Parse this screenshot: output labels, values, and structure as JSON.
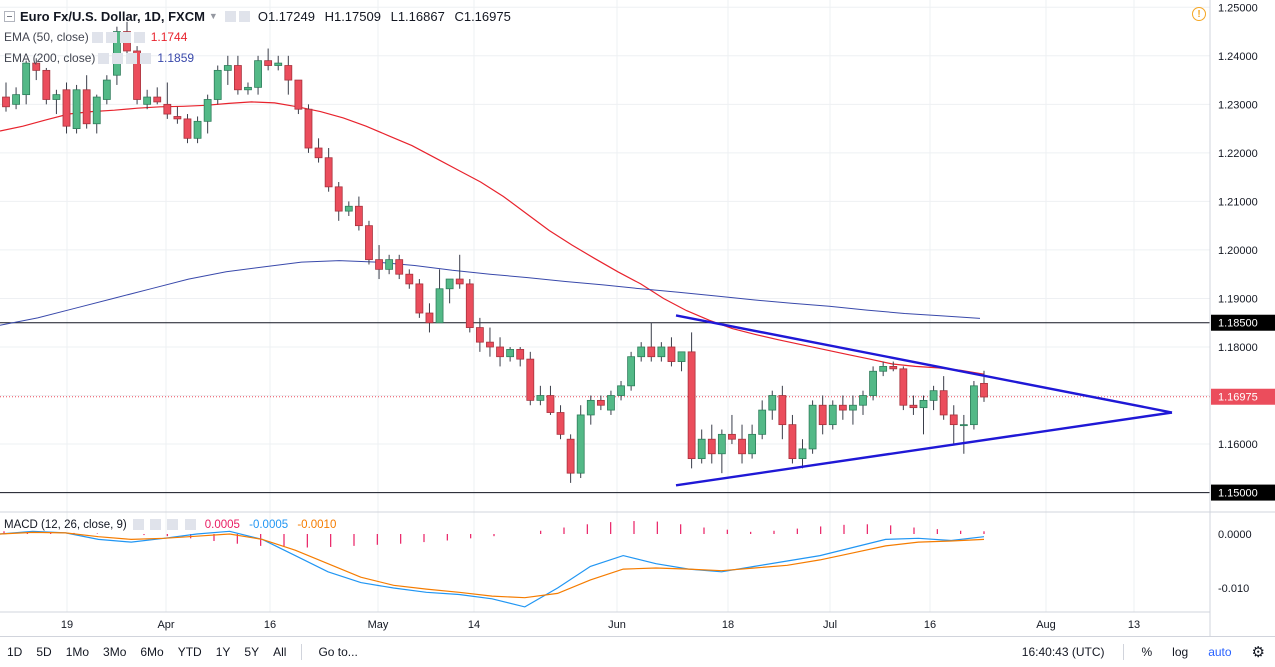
{
  "header": {
    "symbol": "Euro Fx/U.S. Dollar, 1D, FXCM",
    "open": "O1.17249",
    "high": "H1.17509",
    "low": "L1.16867",
    "close": "C1.16975",
    "alert_icon": "clock-alert-icon"
  },
  "indicators": [
    {
      "label": "EMA (50, close)",
      "value": "1.1744",
      "color": "#e8232d"
    },
    {
      "label": "EMA (200, close)",
      "value": "1.1859",
      "color": "#3949ab"
    }
  ],
  "macd": {
    "label": "MACD (12, 26, close, 9)",
    "hist": "0.0005",
    "macd": "-0.0005",
    "signal": "-0.0010",
    "hist_color": "#e91e63",
    "macd_color": "#2196f3",
    "signal_color": "#f57c00"
  },
  "price_axis": {
    "ticks": [
      "1.25000",
      "1.24000",
      "1.23000",
      "1.22000",
      "1.21000",
      "1.20000",
      "1.19000",
      "1.18000",
      "1.16000",
      "1.15000"
    ],
    "labels": {
      "resistance": "1.18500",
      "current": "1.16975",
      "support": "1.15000"
    },
    "macd_ticks": [
      "0.0000",
      "-0.010"
    ]
  },
  "time_axis": [
    "19",
    "Apr",
    "16",
    "May",
    "14",
    "Jun",
    "18",
    "Jul",
    "16",
    "Aug",
    "13"
  ],
  "bottom_bar": {
    "timeframes": [
      "1D",
      "5D",
      "1Mo",
      "3Mo",
      "6Mo",
      "YTD",
      "1Y",
      "5Y",
      "All"
    ],
    "goto": "Go to...",
    "clock": "16:40:43 (UTC)",
    "percent": "%",
    "log": "log",
    "auto": "auto",
    "settings_icon": "gear-icon"
  },
  "chart_data": {
    "type": "candlestick",
    "title": "Euro Fx/U.S. Dollar, 1D, FXCM",
    "ylim": [
      1.146,
      1.2515
    ],
    "x_labels": [
      "19",
      "Apr",
      "16",
      "May",
      "14",
      "Jun",
      "18",
      "Jul",
      "16",
      "Aug",
      "13"
    ],
    "candles": [
      [
        1.2315,
        1.2345,
        1.2285,
        1.2295
      ],
      [
        1.23,
        1.2335,
        1.229,
        1.232
      ],
      [
        1.232,
        1.239,
        1.23,
        1.2385
      ],
      [
        1.2385,
        1.2395,
        1.235,
        1.237
      ],
      [
        1.237,
        1.2375,
        1.23,
        1.231
      ],
      [
        1.231,
        1.233,
        1.228,
        1.232
      ],
      [
        1.233,
        1.2345,
        1.224,
        1.2255
      ],
      [
        1.225,
        1.234,
        1.224,
        1.233
      ],
      [
        1.233,
        1.236,
        1.225,
        1.226
      ],
      [
        1.226,
        1.232,
        1.224,
        1.2315
      ],
      [
        1.231,
        1.236,
        1.23,
        1.235
      ],
      [
        1.236,
        1.246,
        1.234,
        1.245
      ],
      [
        1.245,
        1.247,
        1.24,
        1.241
      ],
      [
        1.241,
        1.242,
        1.23,
        1.231
      ],
      [
        1.23,
        1.233,
        1.229,
        1.2315
      ],
      [
        1.2315,
        1.2335,
        1.23,
        1.2305
      ],
      [
        1.23,
        1.2345,
        1.227,
        1.228
      ],
      [
        1.2275,
        1.2295,
        1.226,
        1.227
      ],
      [
        1.227,
        1.228,
        1.222,
        1.223
      ],
      [
        1.223,
        1.2275,
        1.222,
        1.2265
      ],
      [
        1.2265,
        1.232,
        1.224,
        1.231
      ],
      [
        1.231,
        1.238,
        1.23,
        1.237
      ],
      [
        1.237,
        1.24,
        1.234,
        1.238
      ],
      [
        1.238,
        1.24,
        1.232,
        1.233
      ],
      [
        1.233,
        1.2345,
        1.232,
        1.2335
      ],
      [
        1.2335,
        1.24,
        1.232,
        1.239
      ],
      [
        1.239,
        1.2415,
        1.237,
        1.238
      ],
      [
        1.238,
        1.24,
        1.237,
        1.2385
      ],
      [
        1.238,
        1.24,
        1.232,
        1.235
      ],
      [
        1.235,
        1.235,
        1.228,
        1.229
      ],
      [
        1.229,
        1.23,
        1.22,
        1.221
      ],
      [
        1.221,
        1.223,
        1.218,
        1.219
      ],
      [
        1.219,
        1.221,
        1.212,
        1.213
      ],
      [
        1.213,
        1.214,
        1.206,
        1.208
      ],
      [
        1.208,
        1.21,
        1.207,
        1.209
      ],
      [
        1.209,
        1.211,
        1.204,
        1.205
      ],
      [
        1.205,
        1.206,
        1.197,
        1.198
      ],
      [
        1.198,
        1.201,
        1.194,
        1.196
      ],
      [
        1.196,
        1.199,
        1.195,
        1.198
      ],
      [
        1.198,
        1.199,
        1.194,
        1.195
      ],
      [
        1.195,
        1.196,
        1.192,
        1.193
      ],
      [
        1.193,
        1.194,
        1.186,
        1.187
      ],
      [
        1.187,
        1.189,
        1.183,
        1.185
      ],
      [
        1.185,
        1.196,
        1.185,
        1.192
      ],
      [
        1.192,
        1.194,
        1.189,
        1.194
      ],
      [
        1.194,
        1.199,
        1.192,
        1.193
      ],
      [
        1.193,
        1.194,
        1.183,
        1.184
      ],
      [
        1.184,
        1.186,
        1.179,
        1.181
      ],
      [
        1.181,
        1.184,
        1.178,
        1.18
      ],
      [
        1.18,
        1.182,
        1.176,
        1.178
      ],
      [
        1.178,
        1.18,
        1.177,
        1.1795
      ],
      [
        1.1795,
        1.18,
        1.176,
        1.1775
      ],
      [
        1.1775,
        1.179,
        1.168,
        1.169
      ],
      [
        1.169,
        1.172,
        1.168,
        1.17
      ],
      [
        1.17,
        1.172,
        1.166,
        1.1665
      ],
      [
        1.1665,
        1.168,
        1.161,
        1.162
      ],
      [
        1.161,
        1.162,
        1.152,
        1.154
      ],
      [
        1.154,
        1.168,
        1.153,
        1.166
      ],
      [
        1.166,
        1.17,
        1.164,
        1.169
      ],
      [
        1.169,
        1.17,
        1.167,
        1.168
      ],
      [
        1.167,
        1.171,
        1.166,
        1.17
      ],
      [
        1.17,
        1.173,
        1.169,
        1.172
      ],
      [
        1.172,
        1.179,
        1.171,
        1.178
      ],
      [
        1.178,
        1.181,
        1.177,
        1.18
      ],
      [
        1.18,
        1.185,
        1.177,
        1.178
      ],
      [
        1.178,
        1.181,
        1.177,
        1.18
      ],
      [
        1.18,
        1.182,
        1.176,
        1.177
      ],
      [
        1.177,
        1.179,
        1.175,
        1.179
      ],
      [
        1.179,
        1.183,
        1.155,
        1.157
      ],
      [
        1.157,
        1.163,
        1.156,
        1.161
      ],
      [
        1.161,
        1.164,
        1.156,
        1.158
      ],
      [
        1.158,
        1.163,
        1.154,
        1.162
      ],
      [
        1.162,
        1.166,
        1.16,
        1.161
      ],
      [
        1.161,
        1.164,
        1.156,
        1.158
      ],
      [
        1.158,
        1.164,
        1.157,
        1.162
      ],
      [
        1.162,
        1.169,
        1.161,
        1.167
      ],
      [
        1.167,
        1.171,
        1.165,
        1.17
      ],
      [
        1.17,
        1.172,
        1.161,
        1.164
      ],
      [
        1.164,
        1.166,
        1.156,
        1.157
      ],
      [
        1.157,
        1.161,
        1.155,
        1.159
      ],
      [
        1.159,
        1.169,
        1.158,
        1.168
      ],
      [
        1.168,
        1.17,
        1.162,
        1.164
      ],
      [
        1.164,
        1.169,
        1.163,
        1.168
      ],
      [
        1.168,
        1.17,
        1.165,
        1.167
      ],
      [
        1.167,
        1.17,
        1.164,
        1.168
      ],
      [
        1.168,
        1.171,
        1.166,
        1.17
      ],
      [
        1.17,
        1.176,
        1.169,
        1.175
      ],
      [
        1.175,
        1.177,
        1.174,
        1.176
      ],
      [
        1.176,
        1.177,
        1.175,
        1.1755
      ],
      [
        1.1755,
        1.176,
        1.167,
        1.168
      ],
      [
        1.168,
        1.17,
        1.166,
        1.1675
      ],
      [
        1.1675,
        1.17,
        1.162,
        1.169
      ],
      [
        1.169,
        1.172,
        1.167,
        1.171
      ],
      [
        1.171,
        1.174,
        1.165,
        1.166
      ],
      [
        1.166,
        1.168,
        1.16,
        1.164
      ],
      [
        1.164,
        1.166,
        1.158,
        1.164
      ],
      [
        1.164,
        1.173,
        1.163,
        1.172
      ],
      [
        1.1725,
        1.1751,
        1.1687,
        1.1697
      ]
    ],
    "ema50": [
      1.2245,
      1.2255,
      1.2268,
      1.228,
      1.2285,
      1.2288,
      1.2292,
      1.2295,
      1.2296,
      1.2298,
      1.2302,
      1.2305,
      1.2303,
      1.2295,
      1.2285,
      1.2272,
      1.2255,
      1.2235,
      1.2215,
      1.219,
      1.2165,
      1.214,
      1.211,
      1.2075,
      1.204,
      1.201,
      1.1982,
      1.1955,
      1.193,
      1.19,
      1.1875,
      1.1855,
      1.1838,
      1.1826,
      1.1815,
      1.1805,
      1.1795,
      1.1785,
      1.1775,
      1.1765,
      1.176,
      1.1757,
      1.1752,
      1.1744
    ],
    "ema200": [
      1.1845,
      1.186,
      1.188,
      1.19,
      1.192,
      1.194,
      1.1955,
      1.1965,
      1.1975,
      1.1978,
      1.1975,
      1.1968,
      1.1958,
      1.195,
      1.1943,
      1.1935,
      1.1928,
      1.192,
      1.1913,
      1.1905,
      1.1897,
      1.189,
      1.1884,
      1.1876,
      1.1869,
      1.1864,
      1.1859
    ],
    "trendlines": [
      {
        "name": "upper-trendline",
        "from": [
          1.1865
        ],
        "to": [
          1.1665
        ]
      },
      {
        "name": "lower-trendline",
        "from": [
          1.1515
        ],
        "to": [
          1.1665
        ]
      }
    ],
    "horizontal_levels": [
      1.185,
      1.15
    ],
    "macd_hist": [
      0.0005,
      0.0004,
      0.0003,
      0.0002,
      0.0001,
      0.0,
      -0.0002,
      -0.0004,
      -0.0008,
      -0.0013,
      -0.0018,
      -0.0022,
      -0.0024,
      -0.0025,
      -0.0024,
      -0.0022,
      -0.002,
      -0.0018,
      -0.0015,
      -0.0012,
      -0.0008,
      -0.0004,
      0.0,
      0.0006,
      0.0012,
      0.0018,
      0.0022,
      0.0024,
      0.0023,
      0.0018,
      0.0012,
      0.0008,
      0.0004,
      0.0006,
      0.001,
      0.0014,
      0.0017,
      0.0018,
      0.0016,
      0.0012,
      0.0009,
      0.0006,
      0.0005
    ],
    "macd_line": [
      0.0,
      0.0005,
      0.0002,
      -0.001,
      -0.0015,
      -0.0008,
      0.0,
      0.0005,
      -0.001,
      -0.004,
      -0.007,
      -0.009,
      -0.01,
      -0.0108,
      -0.0112,
      -0.012,
      -0.0135,
      -0.01,
      -0.006,
      -0.004,
      -0.0055,
      -0.0065,
      -0.007,
      -0.006,
      -0.005,
      -0.004,
      -0.0025,
      -0.001,
      -0.0008,
      -0.0012,
      -0.0005
    ],
    "signal_line": [
      0.0,
      0.0003,
      0.0002,
      -0.0005,
      -0.001,
      -0.0008,
      -0.0004,
      0.0,
      -0.001,
      -0.003,
      -0.0055,
      -0.008,
      -0.0095,
      -0.0102,
      -0.0108,
      -0.0115,
      -0.0118,
      -0.011,
      -0.0085,
      -0.0065,
      -0.0063,
      -0.0065,
      -0.0068,
      -0.0063,
      -0.0058,
      -0.0048,
      -0.0035,
      -0.0022,
      -0.0015,
      -0.0013,
      -0.001
    ]
  }
}
